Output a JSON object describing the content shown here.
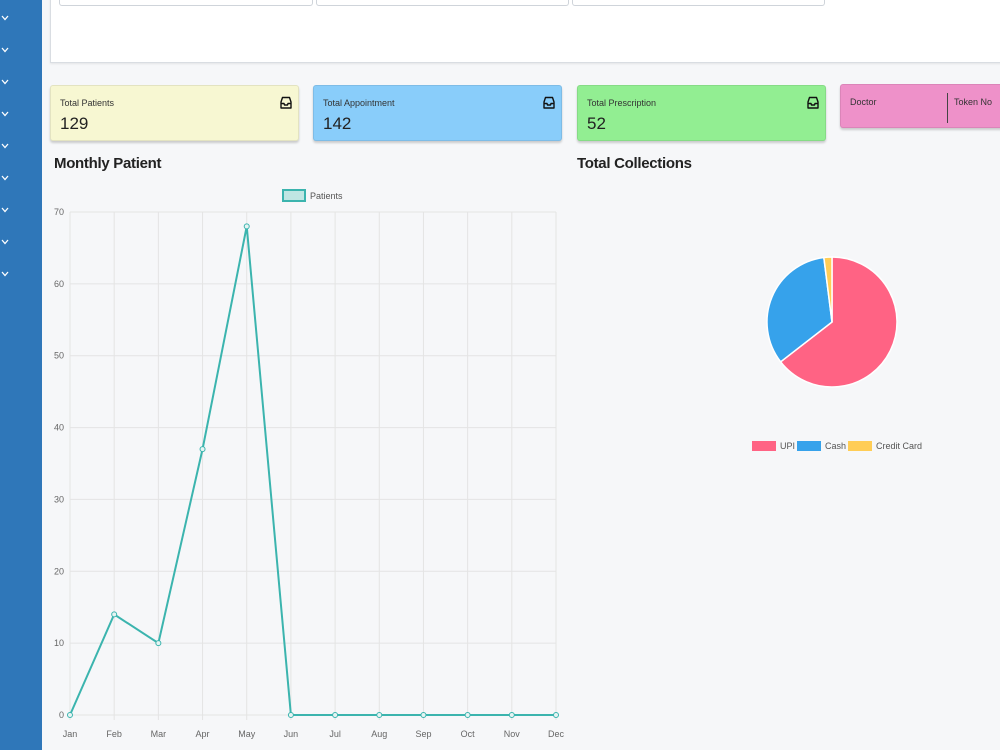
{
  "sidebar": {
    "chevrons": [
      "chevron-down-icon",
      "chevron-down-icon",
      "chevron-down-icon",
      "chevron-down-icon",
      "chevron-down-icon",
      "chevron-down-icon",
      "chevron-down-icon",
      "chevron-down-icon",
      "chevron-down-icon"
    ],
    "color": "#2f77b9"
  },
  "cards": {
    "patients": {
      "label": "Total Patients",
      "value": "129",
      "color": "#f7f7d2",
      "icon": "inbox-icon"
    },
    "appointment": {
      "label": "Total Appointment",
      "value": "142",
      "color": "#89cdfa",
      "icon": "inbox-icon"
    },
    "prescription": {
      "label": "Total Prescription",
      "value": "52",
      "color": "#92ee92",
      "icon": "inbox-icon"
    },
    "doctor": {
      "label": "Doctor",
      "label2": "Token No",
      "color": "#ee91c9"
    }
  },
  "sections": {
    "monthly_title": "Monthly Patient",
    "collections_title": "Total Collections"
  },
  "chart_data": [
    {
      "type": "line",
      "title": "Monthly Patient",
      "categories": [
        "Jan",
        "Feb",
        "Mar",
        "Apr",
        "May",
        "Jun",
        "Jul",
        "Aug",
        "Sep",
        "Oct",
        "Nov",
        "Dec"
      ],
      "series": [
        {
          "name": "Patients",
          "values": [
            0,
            14,
            10,
            37,
            68,
            0,
            0,
            0,
            0,
            0,
            0,
            0
          ],
          "color": "#3bb4ae"
        }
      ],
      "ylim": [
        0,
        70
      ],
      "yticks": [
        "0",
        "10",
        "20",
        "30",
        "40",
        "50",
        "60",
        "70"
      ],
      "grid": true,
      "legend": "top"
    },
    {
      "type": "pie",
      "title": "Total Collections",
      "labels": [
        "UPI",
        "Cash",
        "Credit Card"
      ],
      "values": [
        64.5,
        33.5,
        2.0
      ],
      "colors": [
        "#ff6384",
        "#36a2eb",
        "#ffcd56"
      ],
      "legend": "bottom"
    }
  ]
}
